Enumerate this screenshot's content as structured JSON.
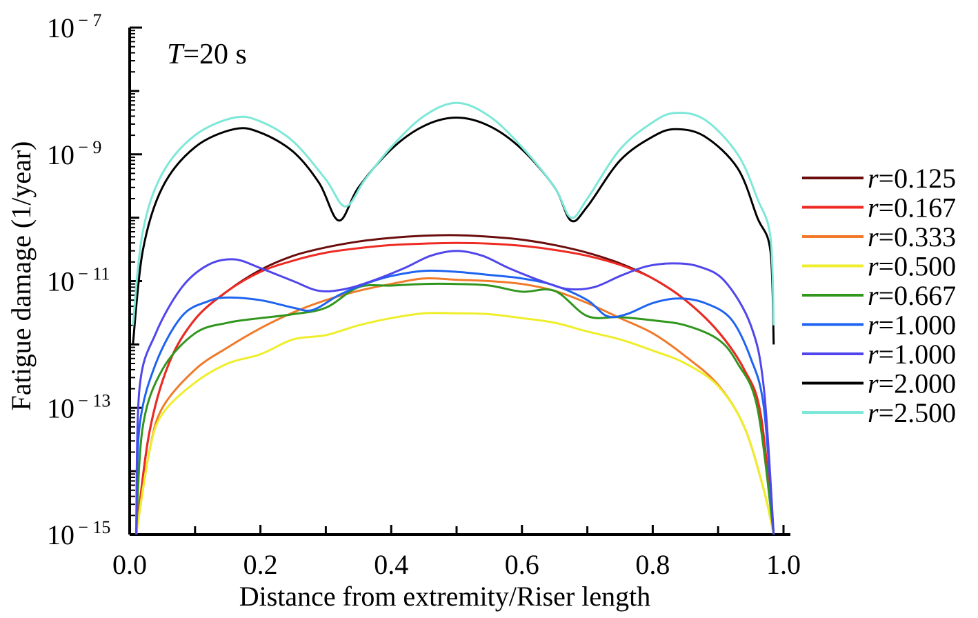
{
  "chart_data": {
    "type": "line",
    "title": "",
    "annotation": {
      "italic": "T",
      "rest": "=20 s"
    },
    "xlabel": "Distance from extremity/Riser length",
    "ylabel": "Fatigue damage (1/year)",
    "xlim": [
      0.0,
      1.0
    ],
    "ylim": [
      1e-15,
      1e-07
    ],
    "yscale": "log",
    "x_ticks": [
      "0.0",
      "0.2",
      "0.4",
      "0.6",
      "0.8",
      "1.0"
    ],
    "y_ticks": [
      {
        "base": "10",
        "exp": "− 7"
      },
      {
        "base": "10",
        "exp": "− 9"
      },
      {
        "base": "10",
        "exp": "− 11"
      },
      {
        "base": "10",
        "exp": "− 13"
      },
      {
        "base": "10",
        "exp": "− 15"
      }
    ],
    "grid": false,
    "legend_position": "right",
    "series": [
      {
        "name": "0.125",
        "color": "#6b0d0d",
        "points": [
          [
            0.01,
            1e-15
          ],
          [
            0.03,
            4e-14
          ],
          [
            0.06,
            5e-13
          ],
          [
            0.1,
            2.5e-12
          ],
          [
            0.15,
            7e-12
          ],
          [
            0.2,
            1.5e-11
          ],
          [
            0.25,
            2.5e-11
          ],
          [
            0.3,
            3.4e-11
          ],
          [
            0.35,
            4.2e-11
          ],
          [
            0.4,
            4.8e-11
          ],
          [
            0.45,
            5.2e-11
          ],
          [
            0.5,
            5.3e-11
          ],
          [
            0.55,
            5e-11
          ],
          [
            0.6,
            4.5e-11
          ],
          [
            0.65,
            3.7e-11
          ],
          [
            0.7,
            2.8e-11
          ],
          [
            0.75,
            1.9e-11
          ],
          [
            0.8,
            1.1e-11
          ],
          [
            0.85,
            5e-12
          ],
          [
            0.9,
            1.6e-12
          ],
          [
            0.94,
            4e-13
          ],
          [
            0.965,
            8e-14
          ],
          [
            0.985,
            1e-15
          ]
        ]
      },
      {
        "name": "0.167",
        "color": "#ee2a22",
        "points": [
          [
            0.01,
            1e-15
          ],
          [
            0.03,
            4e-14
          ],
          [
            0.06,
            5e-13
          ],
          [
            0.1,
            2.5e-12
          ],
          [
            0.15,
            7e-12
          ],
          [
            0.2,
            1.4e-11
          ],
          [
            0.25,
            2.1e-11
          ],
          [
            0.3,
            2.8e-11
          ],
          [
            0.35,
            3.3e-11
          ],
          [
            0.4,
            3.7e-11
          ],
          [
            0.45,
            3.9e-11
          ],
          [
            0.5,
            4e-11
          ],
          [
            0.55,
            3.9e-11
          ],
          [
            0.6,
            3.6e-11
          ],
          [
            0.65,
            3.1e-11
          ],
          [
            0.7,
            2.5e-11
          ],
          [
            0.75,
            1.8e-11
          ],
          [
            0.8,
            1.1e-11
          ],
          [
            0.85,
            5e-12
          ],
          [
            0.9,
            1.6e-12
          ],
          [
            0.94,
            4e-13
          ],
          [
            0.965,
            8e-14
          ],
          [
            0.985,
            1e-15
          ]
        ]
      },
      {
        "name": "0.333",
        "color": "#f07a2a",
        "points": [
          [
            0.01,
            1e-15
          ],
          [
            0.03,
            2e-14
          ],
          [
            0.05,
            1e-13
          ],
          [
            0.1,
            4e-13
          ],
          [
            0.15,
            9e-13
          ],
          [
            0.2,
            1.8e-12
          ],
          [
            0.25,
            3.2e-12
          ],
          [
            0.3,
            5e-12
          ],
          [
            0.35,
            7e-12
          ],
          [
            0.4,
            9e-12
          ],
          [
            0.45,
            1.1e-11
          ],
          [
            0.5,
            1.05e-11
          ],
          [
            0.55,
            1e-11
          ],
          [
            0.6,
            9e-12
          ],
          [
            0.65,
            7e-12
          ],
          [
            0.7,
            4.5e-12
          ],
          [
            0.75,
            2.6e-12
          ],
          [
            0.8,
            1.5e-12
          ],
          [
            0.85,
            6.5e-13
          ],
          [
            0.9,
            2.3e-13
          ],
          [
            0.94,
            5e-14
          ],
          [
            0.97,
            5e-15
          ],
          [
            0.985,
            1e-15
          ]
        ]
      },
      {
        "name": "0.500",
        "color": "#eeee2a",
        "points": [
          [
            0.01,
            1e-15
          ],
          [
            0.03,
            2e-14
          ],
          [
            0.05,
            8e-14
          ],
          [
            0.1,
            2.5e-13
          ],
          [
            0.15,
            5e-13
          ],
          [
            0.2,
            7e-13
          ],
          [
            0.25,
            1.2e-12
          ],
          [
            0.3,
            1.4e-12
          ],
          [
            0.35,
            2e-12
          ],
          [
            0.4,
            2.6e-12
          ],
          [
            0.45,
            3.1e-12
          ],
          [
            0.5,
            3.1e-12
          ],
          [
            0.55,
            3e-12
          ],
          [
            0.6,
            2.6e-12
          ],
          [
            0.65,
            2.2e-12
          ],
          [
            0.7,
            1.6e-12
          ],
          [
            0.75,
            1.2e-12
          ],
          [
            0.8,
            8e-13
          ],
          [
            0.85,
            5e-13
          ],
          [
            0.9,
            2.2e-13
          ],
          [
            0.94,
            5e-14
          ],
          [
            0.97,
            5e-15
          ],
          [
            0.985,
            1e-15
          ]
        ]
      },
      {
        "name": "0.667",
        "color": "#30961e",
        "points": [
          [
            0.01,
            1e-15
          ],
          [
            0.02,
            5e-14
          ],
          [
            0.05,
            4e-13
          ],
          [
            0.1,
            1.5e-12
          ],
          [
            0.15,
            2.2e-12
          ],
          [
            0.2,
            2.6e-12
          ],
          [
            0.25,
            3e-12
          ],
          [
            0.3,
            3.8e-12
          ],
          [
            0.35,
            8e-12
          ],
          [
            0.4,
            8.5e-12
          ],
          [
            0.45,
            9e-12
          ],
          [
            0.5,
            9e-12
          ],
          [
            0.55,
            8.5e-12
          ],
          [
            0.6,
            6.8e-12
          ],
          [
            0.65,
            7e-12
          ],
          [
            0.7,
            2.8e-12
          ],
          [
            0.75,
            2.7e-12
          ],
          [
            0.8,
            2.4e-12
          ],
          [
            0.85,
            2e-12
          ],
          [
            0.9,
            1.2e-12
          ],
          [
            0.93,
            5e-13
          ],
          [
            0.96,
            1e-13
          ],
          [
            0.985,
            1e-15
          ]
        ]
      },
      {
        "name": "1.000",
        "color": "#1e64f0",
        "points": [
          [
            0.01,
            1e-15
          ],
          [
            0.015,
            5e-14
          ],
          [
            0.04,
            5e-13
          ],
          [
            0.08,
            2.8e-12
          ],
          [
            0.12,
            4.8e-12
          ],
          [
            0.15,
            5.5e-12
          ],
          [
            0.2,
            5e-12
          ],
          [
            0.25,
            3.8e-12
          ],
          [
            0.28,
            3.5e-12
          ],
          [
            0.32,
            6e-12
          ],
          [
            0.36,
            9e-12
          ],
          [
            0.4,
            1.2e-11
          ],
          [
            0.45,
            1.45e-11
          ],
          [
            0.5,
            1.4e-11
          ],
          [
            0.55,
            1.25e-11
          ],
          [
            0.6,
            1.1e-11
          ],
          [
            0.65,
            8.5e-12
          ],
          [
            0.7,
            5e-12
          ],
          [
            0.73,
            2.8e-12
          ],
          [
            0.76,
            3e-12
          ],
          [
            0.8,
            4.5e-12
          ],
          [
            0.84,
            5.3e-12
          ],
          [
            0.88,
            4.5e-12
          ],
          [
            0.92,
            2.5e-12
          ],
          [
            0.95,
            6e-13
          ],
          [
            0.97,
            1e-13
          ],
          [
            0.985,
            1e-15
          ]
        ]
      },
      {
        "name": "1.000",
        "color": "#5046eb",
        "points": [
          [
            0.01,
            1e-15
          ],
          [
            0.015,
            2e-13
          ],
          [
            0.04,
            1.5e-12
          ],
          [
            0.08,
            8e-12
          ],
          [
            0.12,
            1.8e-11
          ],
          [
            0.16,
            2.2e-11
          ],
          [
            0.2,
            1.6e-11
          ],
          [
            0.25,
            1e-11
          ],
          [
            0.29,
            7e-12
          ],
          [
            0.33,
            7.5e-12
          ],
          [
            0.37,
            1e-11
          ],
          [
            0.42,
            1.6e-11
          ],
          [
            0.46,
            2.5e-11
          ],
          [
            0.5,
            3e-11
          ],
          [
            0.54,
            2.5e-11
          ],
          [
            0.58,
            1.6e-11
          ],
          [
            0.63,
            1e-11
          ],
          [
            0.67,
            7.5e-12
          ],
          [
            0.71,
            8e-12
          ],
          [
            0.75,
            1.2e-11
          ],
          [
            0.79,
            1.7e-11
          ],
          [
            0.83,
            1.9e-11
          ],
          [
            0.87,
            1.7e-11
          ],
          [
            0.91,
            1e-11
          ],
          [
            0.95,
            2e-12
          ],
          [
            0.97,
            2e-13
          ],
          [
            0.985,
            1e-15
          ]
        ]
      },
      {
        "name": "2.000",
        "color": "#000000",
        "points": [
          [
            0.005,
            1e-12
          ],
          [
            0.02,
            3e-11
          ],
          [
            0.05,
            3e-10
          ],
          [
            0.1,
            1.3e-09
          ],
          [
            0.16,
            2.5e-09
          ],
          [
            0.2,
            2.2e-09
          ],
          [
            0.25,
            1.1e-09
          ],
          [
            0.29,
            3.5e-10
          ],
          [
            0.32,
            9e-11
          ],
          [
            0.35,
            3e-10
          ],
          [
            0.4,
            1.2e-09
          ],
          [
            0.45,
            2.8e-09
          ],
          [
            0.5,
            3.8e-09
          ],
          [
            0.55,
            2.8e-09
          ],
          [
            0.6,
            1.2e-09
          ],
          [
            0.65,
            3e-10
          ],
          [
            0.675,
            9e-11
          ],
          [
            0.7,
            1.5e-10
          ],
          [
            0.75,
            8e-10
          ],
          [
            0.8,
            1.9e-09
          ],
          [
            0.835,
            2.5e-09
          ],
          [
            0.88,
            1.9e-09
          ],
          [
            0.93,
            6e-10
          ],
          [
            0.96,
            1e-10
          ],
          [
            0.98,
            3e-11
          ],
          [
            0.985,
            1e-12
          ]
        ]
      },
      {
        "name": "2.500",
        "color": "#7de8d8",
        "points": [
          [
            0.005,
            2e-12
          ],
          [
            0.02,
            6e-11
          ],
          [
            0.05,
            5e-10
          ],
          [
            0.1,
            2e-09
          ],
          [
            0.16,
            3.8e-09
          ],
          [
            0.2,
            3.3e-09
          ],
          [
            0.25,
            1.6e-09
          ],
          [
            0.3,
            4e-10
          ],
          [
            0.33,
            1.5e-10
          ],
          [
            0.36,
            4e-10
          ],
          [
            0.4,
            1.3e-09
          ],
          [
            0.45,
            4e-09
          ],
          [
            0.5,
            6.5e-09
          ],
          [
            0.55,
            4e-09
          ],
          [
            0.6,
            1.3e-09
          ],
          [
            0.65,
            3e-10
          ],
          [
            0.675,
            1e-10
          ],
          [
            0.7,
            2e-10
          ],
          [
            0.75,
            1.2e-09
          ],
          [
            0.8,
            3.2e-09
          ],
          [
            0.835,
            4.5e-09
          ],
          [
            0.88,
            3.5e-09
          ],
          [
            0.93,
            1e-09
          ],
          [
            0.96,
            2e-10
          ],
          [
            0.98,
            5e-11
          ],
          [
            0.985,
            2e-12
          ]
        ]
      }
    ]
  }
}
